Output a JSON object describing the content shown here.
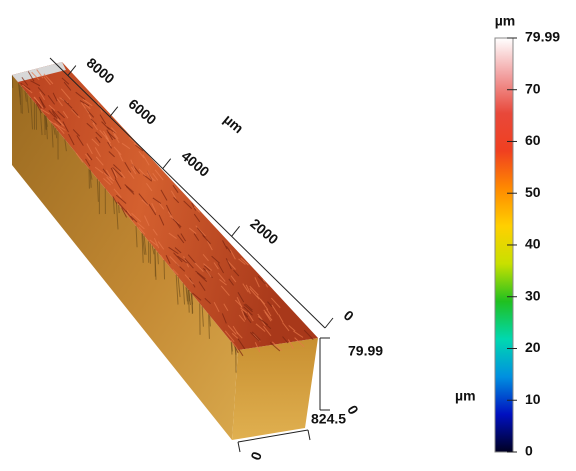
{
  "chart_data": {
    "type": "surface",
    "length_axis": {
      "label": "µm",
      "lim": [
        0,
        9000
      ],
      "ticks": [
        0,
        2000,
        4000,
        6000,
        8000
      ]
    },
    "height_axis": {
      "lim": [
        0,
        79.99
      ],
      "ticks": [
        0,
        79.99
      ]
    },
    "width_axis": {
      "lim": [
        0,
        824.5
      ],
      "ticks": [
        0,
        824.5
      ]
    },
    "colorbar": {
      "unit": "µm",
      "lim": [
        0,
        79.99
      ],
      "ticks": [
        0,
        10,
        20,
        30,
        40,
        50,
        60,
        70,
        79.99
      ],
      "colors": [
        "#000022",
        "#0010c0",
        "#0090e0",
        "#00d8b0",
        "#20c020",
        "#c8e000",
        "#ffd000",
        "#ff8a00",
        "#f04020",
        "#e8483a",
        "#f2a0a0",
        "#ffffff"
      ]
    }
  }
}
